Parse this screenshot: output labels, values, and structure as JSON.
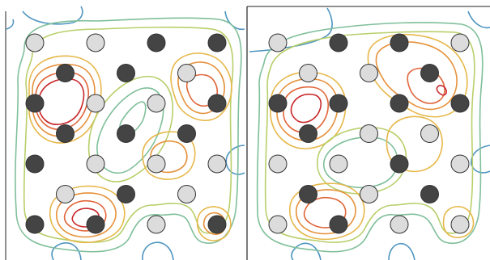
{
  "colors": {
    "contour_levels": [
      "#4f95c0",
      "#7fbf9a",
      "#b8cf6a",
      "#e6b84a",
      "#e6913a",
      "#e0663a",
      "#c8282c"
    ],
    "node_light_fill": "#dcdcdc",
    "node_dark_fill": "#444444",
    "node_stroke": "#333333",
    "frame_stroke": "#222222",
    "background": "#ffffff"
  },
  "panels": [
    {
      "id": "left",
      "grid": [
        [
          "light",
          "light",
          "dark",
          "dark"
        ],
        [
          "dark",
          "dark",
          "light"
        ],
        [
          "dark",
          "light",
          "light",
          "dark"
        ],
        [
          "dark",
          "dark",
          "dark"
        ],
        [
          "dark",
          "light",
          "light",
          "light"
        ],
        [
          "light",
          "dark",
          "light"
        ],
        [
          "dark",
          "dark",
          "light",
          "dark"
        ]
      ]
    },
    {
      "id": "right",
      "grid": [
        [
          "light",
          "dark",
          "dark",
          "light"
        ],
        [
          "light",
          "light",
          "dark"
        ],
        [
          "dark",
          "dark",
          "dark",
          "dark"
        ],
        [
          "dark",
          "light",
          "light"
        ],
        [
          "light",
          "light",
          "dark",
          "light"
        ],
        [
          "dark",
          "light",
          "dark"
        ],
        [
          "light",
          "dark",
          "light",
          "light"
        ]
      ]
    }
  ]
}
